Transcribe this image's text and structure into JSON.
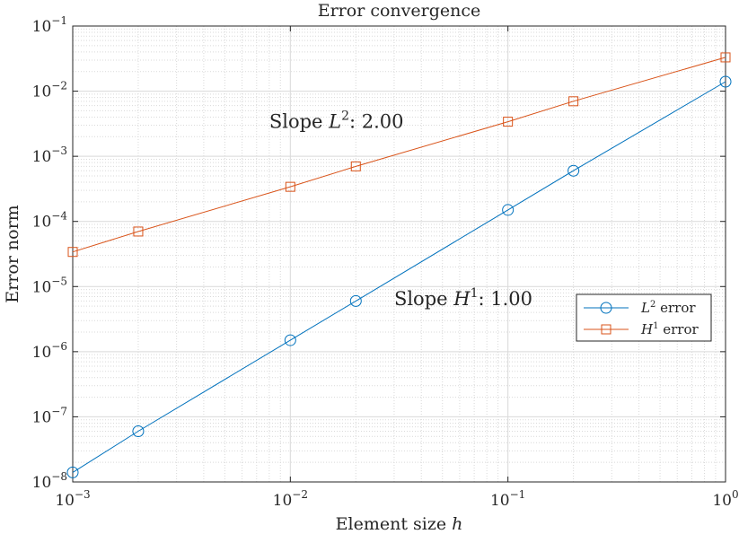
{
  "chart_data": {
    "type": "line",
    "title": "Error convergence",
    "xlabel": "Element size",
    "xlabel_var": "h",
    "ylabel": "Error norm",
    "xscale": "log",
    "yscale": "log",
    "xlim": [
      0.001,
      1
    ],
    "ylim": [
      1e-08,
      0.1
    ],
    "grid": true,
    "minor_grid": true,
    "x_ticks": [
      {
        "base": "10",
        "exp": "−3"
      },
      {
        "base": "10",
        "exp": "−2"
      },
      {
        "base": "10",
        "exp": "−1"
      },
      {
        "base": "10",
        "exp": "0"
      }
    ],
    "y_ticks": [
      {
        "base": "10",
        "exp": "−8"
      },
      {
        "base": "10",
        "exp": "−7"
      },
      {
        "base": "10",
        "exp": "−6"
      },
      {
        "base": "10",
        "exp": "−5"
      },
      {
        "base": "10",
        "exp": "−4"
      },
      {
        "base": "10",
        "exp": "−3"
      },
      {
        "base": "10",
        "exp": "−2"
      },
      {
        "base": "10",
        "exp": "−1"
      }
    ],
    "series": [
      {
        "name_base": "L",
        "name_exp": "2",
        "name_suffix": "error",
        "color": "#0072bd",
        "marker": "circle",
        "x": [
          0.001,
          0.002,
          0.01,
          0.02,
          0.1,
          0.2,
          1
        ],
        "y": [
          1.4e-08,
          6e-08,
          1.5e-06,
          6e-06,
          0.00015,
          0.0006,
          0.014
        ]
      },
      {
        "name_base": "H",
        "name_exp": "1",
        "name_suffix": "error",
        "color": "#d95319",
        "marker": "square",
        "x": [
          0.001,
          0.002,
          0.01,
          0.02,
          0.1,
          0.2,
          1
        ],
        "y": [
          3.4e-05,
          7e-05,
          0.00034,
          0.0007,
          0.0034,
          0.007,
          0.033
        ]
      }
    ],
    "annotations": [
      {
        "prefix": "Slope",
        "var": "L",
        "sup": "2",
        "suffix": ": 2.00",
        "x": 0.008,
        "y": 0.0034
      },
      {
        "prefix": "Slope",
        "var": "H",
        "sup": "1",
        "suffix": ": 1.00",
        "x": 0.03,
        "y": 6.5e-06
      }
    ],
    "legend_position": "right"
  }
}
